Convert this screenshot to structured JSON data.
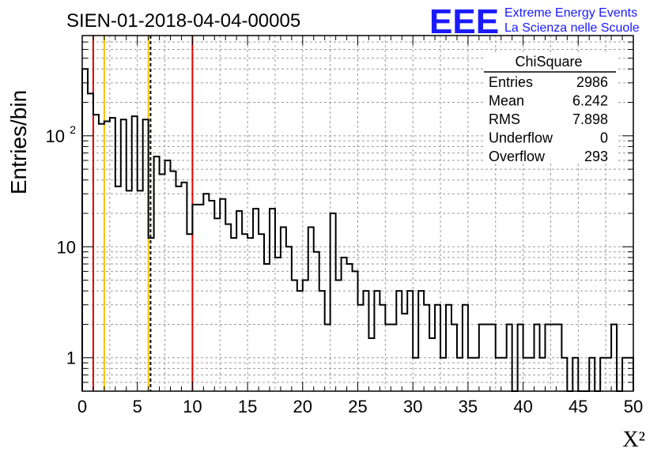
{
  "chart_data": {
    "type": "histogram",
    "title": "SIEN-01-2018-04-04-00005",
    "xlabel": "X²",
    "ylabel": "Entries/bin",
    "xlim": [
      0,
      50
    ],
    "ylim": [
      0.5,
      800
    ],
    "y_scale": "log",
    "grid": true,
    "bin_width": 0.5,
    "x_ticks": [
      "0",
      "5",
      "10",
      "15",
      "20",
      "25",
      "30",
      "35",
      "40",
      "45",
      "50"
    ],
    "y_ticks": [
      {
        "value": 1,
        "label": "1"
      },
      {
        "value": 10,
        "label": "10"
      },
      {
        "value": 100,
        "label": "10",
        "sup": "2"
      }
    ],
    "values": [
      400,
      240,
      155,
      128,
      135,
      145,
      35,
      140,
      32,
      150,
      32,
      140,
      12,
      65,
      45,
      60,
      48,
      35,
      38,
      13,
      24,
      24,
      30,
      26,
      18,
      27,
      16,
      12,
      21,
      13,
      12,
      22,
      13,
      7,
      22,
      8,
      15,
      10,
      5,
      4,
      5,
      15,
      9,
      4,
      2,
      20,
      5,
      8,
      7,
      6,
      3,
      4,
      1.5,
      4,
      3,
      2,
      2,
      4,
      2.5,
      4,
      1,
      4,
      3,
      1.5,
      3,
      1,
      3,
      2,
      1,
      3,
      1,
      1,
      2,
      2,
      2,
      1,
      1,
      2,
      0.5,
      2,
      1,
      1,
      2,
      1,
      2,
      2,
      2,
      1,
      0.5,
      1,
      0.5,
      0.5,
      1,
      0.5,
      1,
      1,
      2,
      0.5,
      1,
      1
    ],
    "vertical_lines": [
      {
        "x": 1,
        "color": "#e00000",
        "style": "solid"
      },
      {
        "x": 2,
        "color": "#f2c200",
        "style": "solid"
      },
      {
        "x": 6,
        "color": "#f2c200",
        "style": "solid"
      },
      {
        "x": 6.2,
        "color": "#000000",
        "style": "dashed"
      },
      {
        "x": 10,
        "color": "#e00000",
        "style": "solid"
      }
    ],
    "stats": {
      "title": "ChiSquare",
      "rows": [
        {
          "label": "Entries",
          "value": "2986"
        },
        {
          "label": "Mean",
          "value": "6.242"
        },
        {
          "label": "RMS",
          "value": "7.898"
        },
        {
          "label": "Underflow",
          "value": "0"
        },
        {
          "label": "Overflow",
          "value": "293"
        }
      ]
    }
  },
  "logo": {
    "mark": "EEE",
    "line1": "Extreme Energy Events",
    "line2": "La Scienza nelle Scuole",
    "color": "#1a1aff"
  }
}
